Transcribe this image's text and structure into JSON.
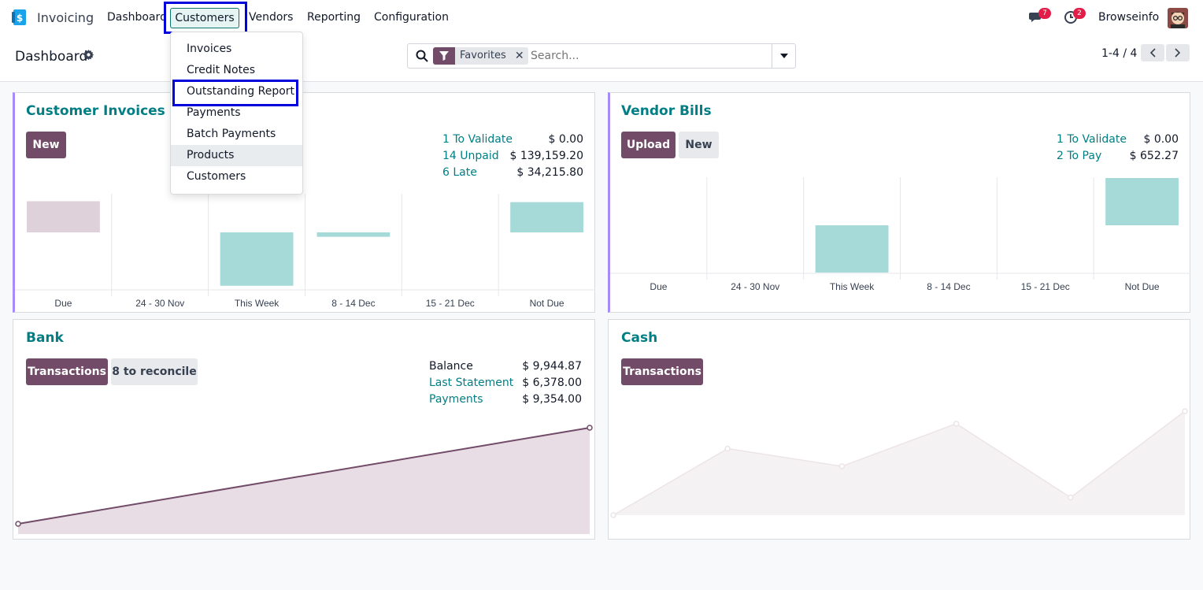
{
  "navbar": {
    "app_name": "Invoicing",
    "menus": {
      "dashboard": "Dashboard",
      "customers": "Customers",
      "vendors": "Vendors",
      "reporting": "Reporting",
      "configuration": "Configuration"
    },
    "messages_badge": "7",
    "activities_badge": "2",
    "user_name": "Browseinfo"
  },
  "control_panel": {
    "breadcrumb": "Dashboard",
    "facet_label": "Favorites",
    "search_placeholder": "Search...",
    "pager": "1-4 / 4"
  },
  "customers_menu": {
    "items": [
      "Invoices",
      "Credit Notes",
      "Outstanding Report",
      "Payments",
      "Batch Payments",
      "Products",
      "Customers"
    ],
    "active_item": "Products"
  },
  "cards": {
    "customer_invoices": {
      "title": "Customer Invoices",
      "new_label": "New",
      "stats": [
        {
          "label": "1 To Validate",
          "value": "$ 0.00"
        },
        {
          "label": "14 Unpaid",
          "value": "$ 139,159.20"
        },
        {
          "label": "6 Late",
          "value": "$ 34,215.80"
        }
      ]
    },
    "vendor_bills": {
      "title": "Vendor Bills",
      "upload_label": "Upload",
      "new_label": "New",
      "stats": [
        {
          "label": "1 To Validate",
          "value": "$ 0.00"
        },
        {
          "label": "2 To Pay",
          "value": "$ 652.27"
        }
      ]
    },
    "bank": {
      "title": "Bank",
      "transactions_label": "Transactions",
      "reconcile_label": "8 to reconcile",
      "stats": [
        {
          "label": "Balance",
          "value": "$ 9,944.87"
        },
        {
          "label": "Last Statement",
          "value": "$ 6,378.00"
        },
        {
          "label": "Payments",
          "value": "$ 9,354.00"
        }
      ]
    },
    "cash": {
      "title": "Cash",
      "transactions_label": "Transactions"
    }
  },
  "colors": {
    "brand": "#714b67",
    "accent_text": "#017e84",
    "bar_positive": "#a6dad8",
    "bar_past": "#dfd1d9",
    "highlight_box": "#0000dd"
  },
  "chart_data": [
    {
      "type": "bar",
      "chart": "customer_invoices",
      "categories": [
        "Due",
        "24 - 30 Nov",
        "This Week",
        "8 - 14 Dec",
        "15 - 21 Dec",
        "Not Due"
      ],
      "values": [
        -35,
        0,
        60,
        5,
        0,
        -34
      ]
    },
    {
      "type": "bar",
      "chart": "vendor_bills",
      "categories": [
        "Due",
        "24 - 30 Nov",
        "This Week",
        "8 - 14 Dec",
        "15 - 21 Dec",
        "Not Due"
      ],
      "values": [
        0,
        0,
        60,
        0,
        0,
        -60
      ]
    },
    {
      "type": "area",
      "chart": "bank",
      "values": [
        0,
        100
      ]
    },
    {
      "type": "area",
      "chart": "cash",
      "values": [
        0,
        64,
        47,
        88,
        17,
        100
      ]
    }
  ]
}
